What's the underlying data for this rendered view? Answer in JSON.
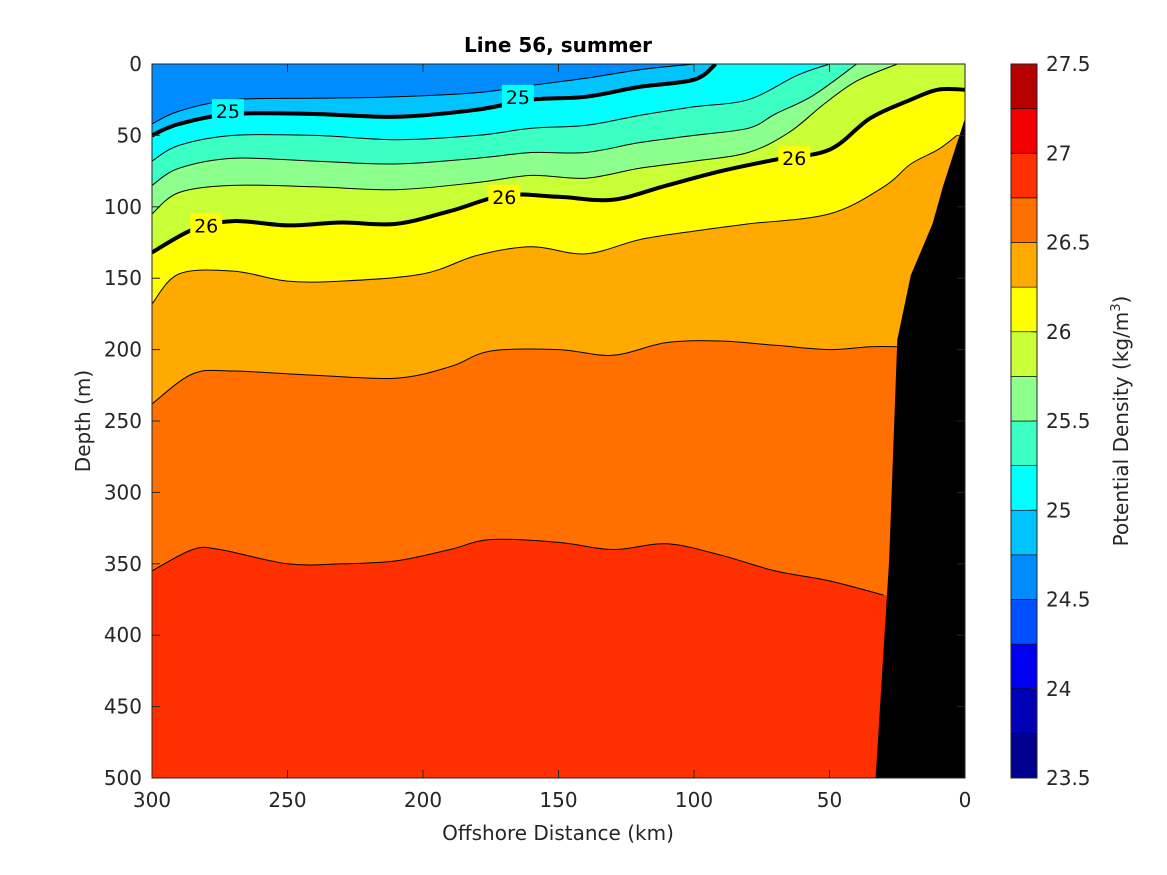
{
  "chart_data": {
    "type": "heatmap",
    "subtype": "filled-contour",
    "title": "Line 56, summer",
    "xlabel": "Offshore Distance (km)",
    "ylabel": "Depth (m)",
    "xlim": [
      300,
      0
    ],
    "ylim": [
      0,
      500
    ],
    "x_reversed": true,
    "y_reversed": true,
    "x_ticks": [
      "300",
      "250",
      "200",
      "150",
      "100",
      "50",
      "0"
    ],
    "x_tick_values": [
      300,
      250,
      200,
      150,
      100,
      50,
      0
    ],
    "y_ticks": [
      "0",
      "50",
      "100",
      "150",
      "200",
      "250",
      "300",
      "350",
      "400",
      "450",
      "500"
    ],
    "y_tick_values": [
      0,
      50,
      100,
      150,
      200,
      250,
      300,
      350,
      400,
      450,
      500
    ],
    "colorbar": {
      "label_main": "Potential Density (kg/m",
      "label_sup": "3",
      "label_end": ")",
      "min": 23.5,
      "max": 27.5,
      "step": 0.25,
      "ticks": [
        "23.5",
        "24",
        "24.5",
        "25",
        "25.5",
        "26",
        "26.5",
        "27",
        "27.5"
      ],
      "tick_values": [
        23.5,
        24,
        24.5,
        25,
        25.5,
        26,
        26.5,
        27,
        27.5
      ],
      "colors": [
        "#00008f",
        "#0000b7",
        "#0000f0",
        "#0050ff",
        "#008cff",
        "#00c3ff",
        "#00ffff",
        "#3cffc3",
        "#8cff8c",
        "#c8ff37",
        "#ffff00",
        "#ffaa00",
        "#ff7000",
        "#ff3000",
        "#f00000",
        "#b70000"
      ]
    },
    "contours": [
      {
        "level": 24.75,
        "points": [
          [
            300,
            42
          ],
          [
            290,
            33
          ],
          [
            270,
            25
          ],
          [
            240,
            24
          ],
          [
            210,
            23
          ],
          [
            180,
            20
          ],
          [
            160,
            15
          ],
          [
            140,
            10
          ],
          [
            120,
            4
          ],
          [
            100,
            0
          ]
        ]
      },
      {
        "level": 25.0,
        "labels": [
          "25",
          "25"
        ],
        "points": [
          [
            300,
            50
          ],
          [
            290,
            42
          ],
          [
            270,
            35
          ],
          [
            240,
            35
          ],
          [
            210,
            37
          ],
          [
            180,
            32
          ],
          [
            160,
            25
          ],
          [
            140,
            23
          ],
          [
            120,
            16
          ],
          [
            100,
            11
          ],
          [
            92,
            0
          ]
        ]
      },
      {
        "level": 25.25,
        "points": [
          [
            300,
            68
          ],
          [
            290,
            57
          ],
          [
            270,
            50
          ],
          [
            240,
            50
          ],
          [
            210,
            53
          ],
          [
            180,
            50
          ],
          [
            160,
            45
          ],
          [
            140,
            43
          ],
          [
            120,
            36
          ],
          [
            100,
            30
          ],
          [
            80,
            25
          ],
          [
            62,
            8
          ],
          [
            50,
            0
          ]
        ]
      },
      {
        "level": 25.5,
        "points": [
          [
            300,
            85
          ],
          [
            290,
            73
          ],
          [
            270,
            66
          ],
          [
            240,
            68
          ],
          [
            210,
            70
          ],
          [
            180,
            66
          ],
          [
            160,
            62
          ],
          [
            140,
            62
          ],
          [
            120,
            55
          ],
          [
            100,
            50
          ],
          [
            80,
            45
          ],
          [
            70,
            35
          ],
          [
            56,
            22
          ],
          [
            40,
            0
          ]
        ]
      },
      {
        "level": 25.75,
        "points": [
          [
            300,
            105
          ],
          [
            290,
            90
          ],
          [
            270,
            85
          ],
          [
            240,
            86
          ],
          [
            210,
            88
          ],
          [
            180,
            83
          ],
          [
            160,
            78
          ],
          [
            140,
            80
          ],
          [
            120,
            73
          ],
          [
            100,
            68
          ],
          [
            80,
            62
          ],
          [
            65,
            48
          ],
          [
            52,
            28
          ],
          [
            40,
            12
          ],
          [
            25,
            0
          ]
        ]
      },
      {
        "level": 26.0,
        "labels": [
          "26",
          "26",
          "26"
        ],
        "points": [
          [
            300,
            132
          ],
          [
            285,
            116
          ],
          [
            270,
            110
          ],
          [
            250,
            113
          ],
          [
            230,
            111
          ],
          [
            210,
            112
          ],
          [
            190,
            103
          ],
          [
            170,
            92
          ],
          [
            150,
            93
          ],
          [
            130,
            95
          ],
          [
            110,
            85
          ],
          [
            90,
            75
          ],
          [
            70,
            67
          ],
          [
            50,
            60
          ],
          [
            35,
            38
          ],
          [
            20,
            25
          ],
          [
            10,
            18
          ],
          [
            0,
            18
          ]
        ]
      },
      {
        "level": 26.25,
        "points": [
          [
            300,
            168
          ],
          [
            290,
            147
          ],
          [
            270,
            145
          ],
          [
            250,
            152
          ],
          [
            230,
            152
          ],
          [
            200,
            147
          ],
          [
            180,
            134
          ],
          [
            160,
            128
          ],
          [
            140,
            133
          ],
          [
            120,
            123
          ],
          [
            100,
            117
          ],
          [
            80,
            112
          ],
          [
            50,
            105
          ],
          [
            30,
            86
          ],
          [
            20,
            70
          ],
          [
            10,
            60
          ],
          [
            3,
            50
          ]
        ]
      },
      {
        "level": 26.5,
        "points": [
          [
            300,
            238
          ],
          [
            285,
            217
          ],
          [
            270,
            215
          ],
          [
            240,
            218
          ],
          [
            210,
            220
          ],
          [
            190,
            212
          ],
          [
            175,
            201
          ],
          [
            150,
            200
          ],
          [
            130,
            204
          ],
          [
            110,
            195
          ],
          [
            90,
            194
          ],
          [
            70,
            197
          ],
          [
            50,
            200
          ],
          [
            35,
            198
          ],
          [
            25,
            198
          ]
        ]
      },
      {
        "level": 26.75,
        "points": [
          [
            300,
            355
          ],
          [
            285,
            340
          ],
          [
            275,
            340
          ],
          [
            250,
            350
          ],
          [
            230,
            350
          ],
          [
            210,
            348
          ],
          [
            190,
            340
          ],
          [
            175,
            333
          ],
          [
            150,
            335
          ],
          [
            130,
            340
          ],
          [
            110,
            336
          ],
          [
            90,
            344
          ],
          [
            70,
            355
          ],
          [
            50,
            362
          ],
          [
            30,
            372
          ]
        ]
      }
    ],
    "land": [
      [
        0,
        38
      ],
      [
        8,
        85
      ],
      [
        12,
        112
      ],
      [
        20,
        148
      ],
      [
        25,
        193
      ],
      [
        28,
        348
      ],
      [
        33,
        500
      ],
      [
        0,
        500
      ]
    ]
  }
}
